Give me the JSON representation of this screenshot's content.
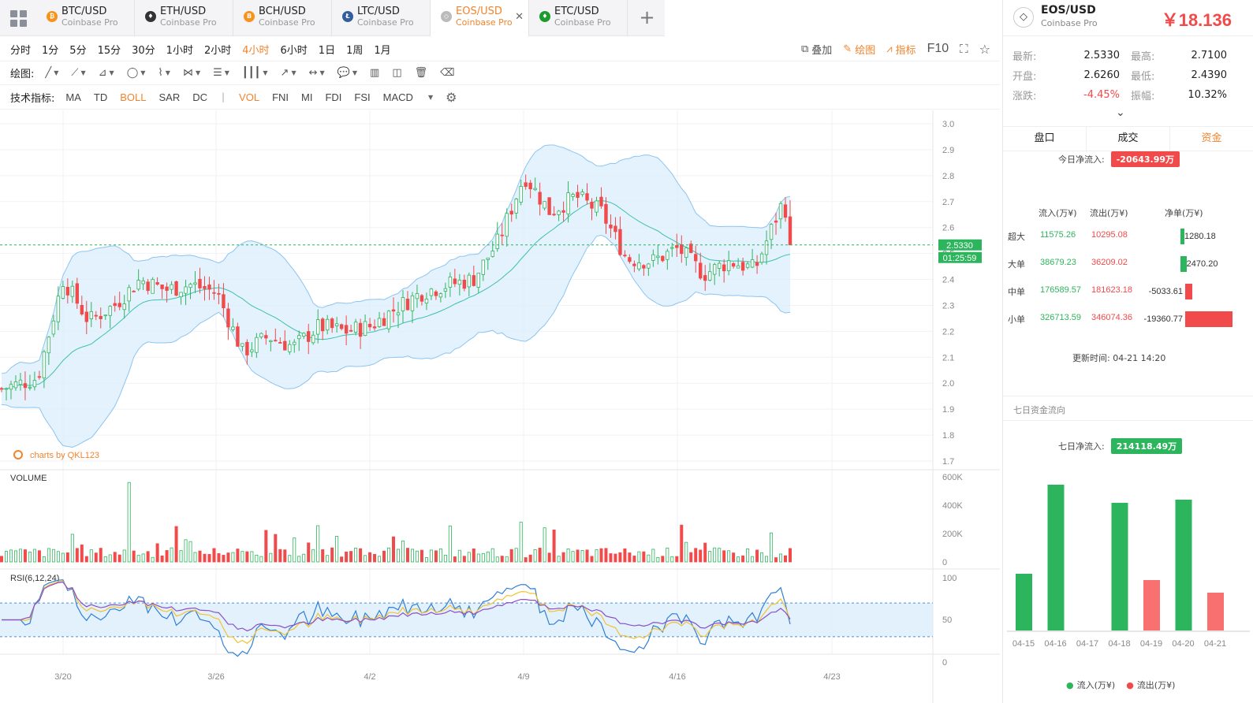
{
  "tabs": [
    {
      "pair": "BTC/USD",
      "exchange": "Coinbase Pro",
      "icon": "bitcoin-icon",
      "color": "#f7931a",
      "glyph": "₿"
    },
    {
      "pair": "ETH/USD",
      "exchange": "Coinbase Pro",
      "icon": "ethereum-icon",
      "color": "#333333",
      "glyph": "♦"
    },
    {
      "pair": "BCH/USD",
      "exchange": "Coinbase Pro",
      "icon": "bitcoin-cash-icon",
      "color": "#f7931a",
      "glyph": "B"
    },
    {
      "pair": "LTC/USD",
      "exchange": "Coinbase Pro",
      "icon": "litecoin-icon",
      "color": "#345d9d",
      "glyph": "Ł"
    },
    {
      "pair": "EOS/USD",
      "exchange": "Coinbase Pro",
      "icon": "eos-icon",
      "color": "#bbbbbb",
      "glyph": "◇"
    },
    {
      "pair": "ETC/USD",
      "exchange": "Coinbase Pro",
      "icon": "ethereum-classic-icon",
      "color": "#1e9b2e",
      "glyph": "♦"
    }
  ],
  "periods": [
    "分时",
    "1分",
    "5分",
    "15分",
    "30分",
    "1小时",
    "2小时",
    "4小时",
    "6小时",
    "1日",
    "1周",
    "1月"
  ],
  "active_period": "4小时",
  "toolbar_right": {
    "overlay": "叠加",
    "draw": "绘图",
    "indicators": "指标",
    "f10": "F10"
  },
  "draw_label": "绘图:",
  "indicator_label": "技术指标:",
  "indicators_main": [
    "MA",
    "TD",
    "BOLL",
    "SAR",
    "DC"
  ],
  "indicators_sub": [
    "VOL",
    "FNI",
    "MI",
    "FDI",
    "FSI",
    "MACD"
  ],
  "active_indicators": [
    "BOLL",
    "VOL"
  ],
  "chart": {
    "watermark": "charts by QKL123",
    "volume_label": "VOLUME",
    "rsi_label": "RSI(6,12,24)",
    "price_tag": "2.5330",
    "countdown_tag": "01:25:59",
    "y_ticks": [
      "3.0",
      "2.9",
      "2.8",
      "2.7",
      "2.6",
      "2.5",
      "2.4",
      "2.3",
      "2.2",
      "2.1",
      "2.0",
      "1.9",
      "1.8",
      "1.7"
    ],
    "vol_ticks": [
      "600K",
      "400K",
      "200K",
      "0"
    ],
    "rsi_ticks": [
      "100",
      "50",
      "0"
    ],
    "x_ticks": [
      "3/20",
      "3/26",
      "4/2",
      "4/9",
      "4/16",
      "4/23"
    ]
  },
  "chart_data": {
    "type": "candlestick",
    "interval": "4小时",
    "x_range": [
      "3/18",
      "4/21"
    ],
    "ylim": [
      1.7,
      3.0
    ],
    "last_price": 2.533,
    "close_path": [
      [
        "3/18",
        1.99
      ],
      [
        "3/19",
        2.02
      ],
      [
        "3/20",
        2.4
      ],
      [
        "3/21",
        2.24
      ],
      [
        "3/22",
        2.3
      ],
      [
        "3/23",
        2.4
      ],
      [
        "3/24",
        2.36
      ],
      [
        "3/25",
        2.38
      ],
      [
        "3/26",
        2.35
      ],
      [
        "3/27",
        2.12
      ],
      [
        "3/28",
        2.18
      ],
      [
        "3/29",
        2.14
      ],
      [
        "3/30",
        2.22
      ],
      [
        "3/31",
        2.2
      ],
      [
        "4/1",
        2.22
      ],
      [
        "4/2",
        2.29
      ],
      [
        "4/3",
        2.35
      ],
      [
        "4/4",
        2.38
      ],
      [
        "4/5",
        2.4
      ],
      [
        "4/6",
        2.55
      ],
      [
        "4/7",
        2.8
      ],
      [
        "4/8",
        2.66
      ],
      [
        "4/9",
        2.72
      ],
      [
        "4/10",
        2.66
      ],
      [
        "4/11",
        2.48
      ],
      [
        "4/12",
        2.47
      ],
      [
        "4/13",
        2.52
      ],
      [
        "4/14",
        2.42
      ],
      [
        "4/15",
        2.47
      ],
      [
        "4/16",
        2.44
      ],
      [
        "4/17",
        2.68
      ],
      [
        "4/18",
        2.64
      ],
      [
        "4/19",
        2.74
      ],
      [
        "4/20",
        2.66
      ],
      [
        "4/21",
        2.53
      ]
    ],
    "volume_ylim": [
      0,
      600000
    ],
    "rsi_ylim": [
      0,
      100
    ],
    "rsi_bands": [
      30,
      70
    ]
  },
  "right": {
    "symbol": "EOS/USD",
    "exchange": "Coinbase Pro",
    "price": "￥18.136",
    "stats": [
      {
        "k": "最新:",
        "v": "2.5330",
        "k2": "最高:",
        "v2": "2.7100"
      },
      {
        "k": "开盘:",
        "v": "2.6260",
        "k2": "最低:",
        "v2": "2.4390"
      },
      {
        "k": "涨跌:",
        "v": "-4.45%",
        "k2": "振幅:",
        "v2": "10.32%"
      }
    ],
    "tabs": [
      "盘口",
      "成交",
      "资金"
    ],
    "active_tab": "资金",
    "today_label": "今日净流入:",
    "today_value": "-20643.99万",
    "flow_headers": [
      "流入(万¥)",
      "流出(万¥)",
      "净单(万¥)"
    ],
    "flow_rows": [
      {
        "name": "超大",
        "in": "11575.26",
        "out": "10295.08",
        "net": "1280.18",
        "sign": 1,
        "mag": 0.066
      },
      {
        "name": "大单",
        "in": "38679.23",
        "out": "36209.02",
        "net": "2470.20",
        "sign": 1,
        "mag": 0.128
      },
      {
        "name": "中单",
        "in": "176589.57",
        "out": "181623.18",
        "net": "-5033.61",
        "sign": -1,
        "mag": 0.26
      },
      {
        "name": "小单",
        "in": "326713.59",
        "out": "346074.36",
        "net": "-19360.77",
        "sign": -1,
        "mag": 1.0
      }
    ],
    "update_label": "更新时间:",
    "update_time": "04-21 14:20",
    "seven_title": "七日资金流向",
    "seven_label": "七日净流入:",
    "seven_value": "214118.49万",
    "legend_in": "流入(万¥)",
    "legend_out": "流出(万¥)",
    "seven_chart": {
      "type": "bar",
      "categories": [
        "04-15",
        "04-16",
        "04-17",
        "04-18",
        "04-19",
        "04-20",
        "04-21"
      ],
      "values": [
        72000,
        185000,
        0,
        162000,
        64000,
        166000,
        48000
      ],
      "direction": [
        "in",
        "in",
        "in",
        "in",
        "out",
        "in",
        "out"
      ]
    }
  },
  "colors": {
    "up": "#2db55d",
    "down": "#f04a4a",
    "accent": "#f0842d",
    "band": "#dbeefc",
    "mid": "#3cc0b0",
    "price": "#2db55d"
  }
}
